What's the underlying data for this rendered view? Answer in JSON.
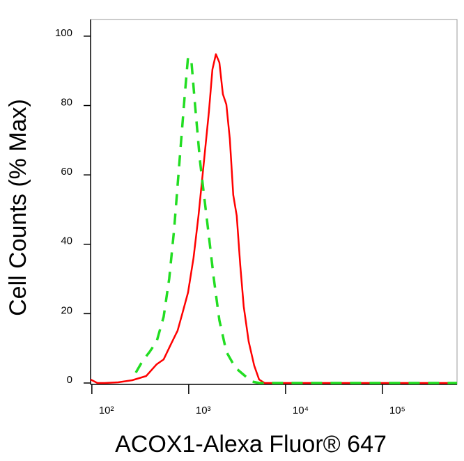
{
  "chart_data": {
    "type": "line",
    "x_label": "ACOX1-Alexa Fluor® 647",
    "y_label": "Cell Counts (% Max)",
    "xscale": "log",
    "xlim": [
      97,
      589000
    ],
    "ylim": [
      -0.4,
      104.8
    ],
    "xticks": [
      {
        "value": 100,
        "label": "10²"
      },
      {
        "value": 1000,
        "label": "10³"
      },
      {
        "value": 10000,
        "label": "10⁴"
      },
      {
        "value": 100000,
        "label": "10⁵"
      }
    ],
    "yticks": [
      0,
      20,
      40,
      60,
      80,
      100
    ],
    "series": [
      {
        "color": "#ff0000",
        "dash": "solid",
        "x": [
          97,
          114,
          135,
          187,
          261,
          364,
          467,
          551,
          650,
          767,
          861,
          984,
          1122,
          1261,
          1416,
          1618,
          1758,
          1910,
          2075,
          2254,
          2445,
          2656,
          2884,
          3133,
          3404,
          3698,
          4156,
          4745,
          5330,
          6085,
          589000
        ],
        "values": [
          1.0,
          0,
          0,
          0.2,
          0.8,
          2.0,
          5.4,
          6.8,
          11.0,
          15.1,
          20.1,
          26.1,
          36.1,
          48.2,
          62.2,
          78.3,
          90.4,
          94.8,
          92.4,
          83.3,
          80.3,
          70.3,
          54.2,
          48.2,
          34.1,
          22.1,
          12.0,
          5.0,
          1.0,
          0,
          0
        ]
      },
      {
        "color": "#22dd22",
        "dash": "dashed",
        "x": [
          284,
          335,
          395,
          467,
          551,
          629,
          707,
          806,
          906,
          984,
          1069,
          1161,
          1303,
          1439,
          1618,
          1816,
          2075,
          2445,
          3033,
          3828,
          4519,
          5330,
          589000
        ],
        "values": [
          3.0,
          6.4,
          9.0,
          12.0,
          19.1,
          30.1,
          44.2,
          64.3,
          82.3,
          94.0,
          92.4,
          80.3,
          64.3,
          54.2,
          42.2,
          30.1,
          18.1,
          9.0,
          4.4,
          2.0,
          0.4,
          0,
          0
        ]
      }
    ]
  }
}
